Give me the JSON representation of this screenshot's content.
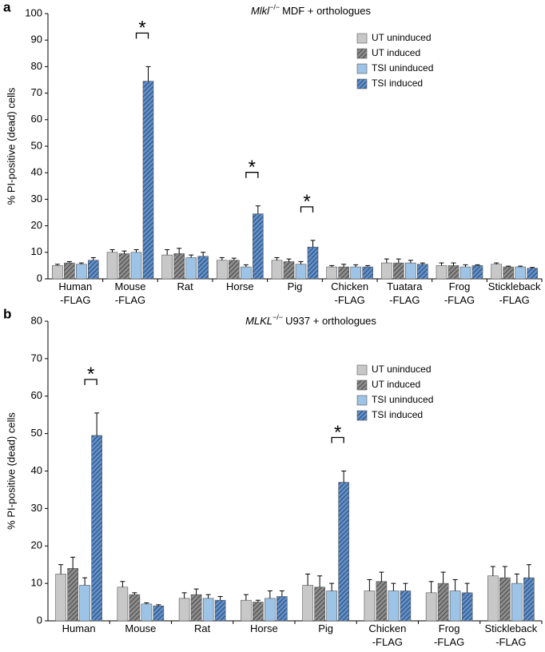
{
  "chart_data": [
    {
      "type": "bar",
      "panel": "a",
      "title": {
        "gene": "Mlkl",
        "superscript": "−/−",
        "rest": "MDF + orthologues"
      },
      "ylabel": "% PI-positive (dead) cells",
      "categories": [
        "Human\n-FLAG",
        "Mouse\n-FLAG",
        "Rat",
        "Horse",
        "Pig",
        "Chicken\n-FLAG",
        "Tuatara\n-FLAG",
        "Frog\n-FLAG",
        "Stickleback\n-FLAG"
      ],
      "series": [
        {
          "name": "UT uninduced",
          "color": "#c8c8c8",
          "hatch": false,
          "values": [
            5,
            10,
            9,
            7,
            7,
            4.5,
            6,
            5,
            5.5
          ],
          "errors": [
            0.5,
            1,
            2,
            1,
            1,
            0.5,
            1.5,
            1,
            0.5
          ]
        },
        {
          "name": "UT induced",
          "color": "#8c8c8c",
          "hatch": true,
          "values": [
            6,
            9.5,
            9.5,
            7,
            6.5,
            4.5,
            6,
            5,
            4.5
          ],
          "errors": [
            0.5,
            1,
            2,
            0.8,
            1,
            1,
            1.5,
            1,
            0.3
          ]
        },
        {
          "name": "TSI uninduced",
          "color": "#9dc3e6",
          "hatch": false,
          "values": [
            5.5,
            10,
            8,
            4.5,
            5.5,
            4.5,
            6,
            4.5,
            4.5
          ],
          "errors": [
            0.5,
            1,
            1,
            0.8,
            1,
            0.8,
            1,
            0.8,
            0.3
          ]
        },
        {
          "name": "TSI induced",
          "color": "#5b8fd0",
          "hatch": true,
          "values": [
            7,
            74.5,
            8.5,
            24.5,
            12,
            4.5,
            5.5,
            5,
            4
          ],
          "errors": [
            1,
            5.5,
            1.5,
            3,
            2.5,
            0.5,
            0.5,
            0.3,
            0.3
          ]
        }
      ],
      "annotations": [
        {
          "text": "*",
          "category": 1
        },
        {
          "text": "*",
          "category": 3
        },
        {
          "text": "*",
          "category": 4
        }
      ],
      "ylim": [
        0,
        100
      ],
      "yticks": [
        0,
        10,
        20,
        30,
        40,
        50,
        60,
        70,
        80,
        90,
        100
      ],
      "legend": "upper right",
      "grid": false
    },
    {
      "type": "bar",
      "panel": "b",
      "title": {
        "gene": "MLKL",
        "superscript": "−/−",
        "rest": "U937 + orthologues"
      },
      "ylabel": "% PI-positive (dead) cells",
      "categories": [
        "Human",
        "Mouse",
        "Rat",
        "Horse",
        "Pig",
        "Chicken\n-FLAG",
        "Frog\n-FLAG",
        "Stickleback\n-FLAG"
      ],
      "series": [
        {
          "name": "UT uninduced",
          "color": "#c8c8c8",
          "hatch": false,
          "values": [
            12.5,
            9,
            6,
            5.5,
            9.5,
            8,
            7.5,
            12
          ],
          "errors": [
            2.5,
            1.5,
            1.5,
            1.5,
            3,
            3,
            3,
            2.5
          ]
        },
        {
          "name": "UT induced",
          "color": "#8c8c8c",
          "hatch": true,
          "values": [
            14,
            7,
            7,
            5,
            9,
            10.5,
            10,
            11.5
          ],
          "errors": [
            3,
            0.5,
            1.5,
            0.5,
            3,
            2.5,
            3,
            3
          ]
        },
        {
          "name": "TSI uninduced",
          "color": "#9dc3e6",
          "hatch": false,
          "values": [
            9.5,
            4.5,
            6,
            6,
            8,
            8,
            8,
            10
          ],
          "errors": [
            2,
            0.3,
            1,
            2,
            2,
            2,
            3,
            2.5
          ]
        },
        {
          "name": "TSI induced",
          "color": "#5b8fd0",
          "hatch": true,
          "values": [
            49.5,
            4,
            5.5,
            6.5,
            37,
            8,
            7.5,
            11.5
          ],
          "errors": [
            6,
            0.3,
            1,
            1.5,
            3,
            2,
            2.5,
            3.5
          ]
        }
      ],
      "annotations": [
        {
          "text": "*",
          "category": 0
        },
        {
          "text": "*",
          "category": 4
        }
      ],
      "ylim": [
        0,
        80
      ],
      "yticks": [
        0,
        10,
        20,
        30,
        40,
        50,
        60,
        70,
        80
      ],
      "legend": "upper right",
      "grid": false
    }
  ]
}
